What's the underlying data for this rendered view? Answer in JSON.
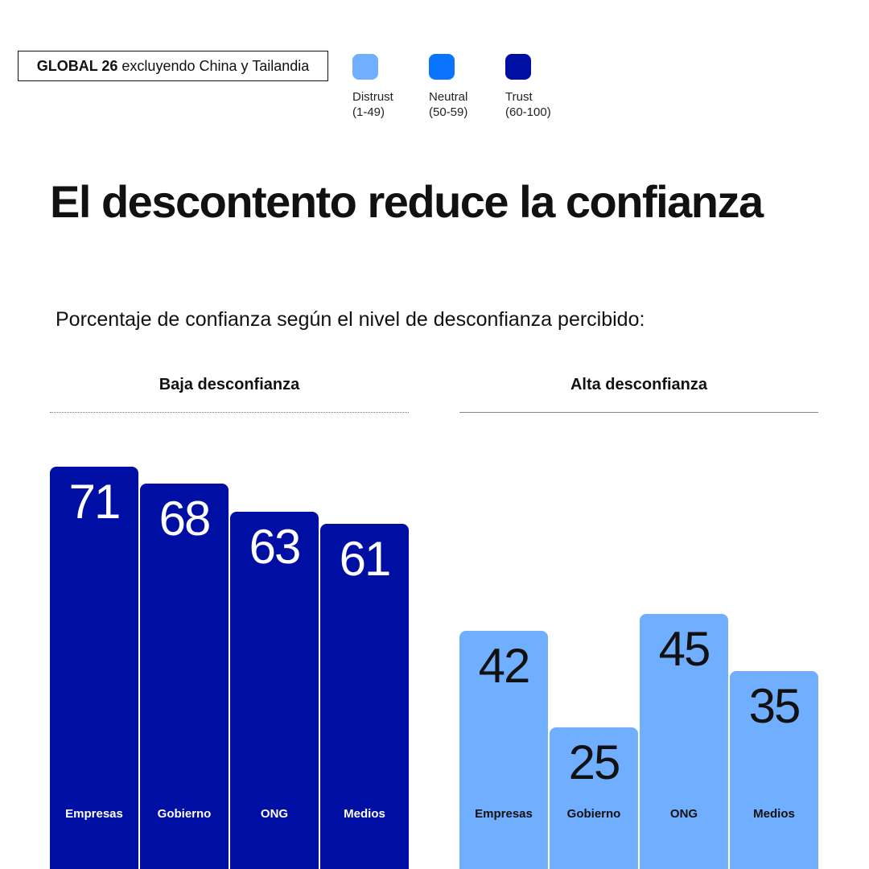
{
  "header": {
    "scope_bold": "GLOBAL 26",
    "scope_rest": "excluyendo China y Tailandia"
  },
  "legend": [
    {
      "name": "Distrust",
      "range": "(1-49)",
      "color": "#70aeff"
    },
    {
      "name": "Neutral",
      "range": "(50-59)",
      "color": "#0b74ff"
    },
    {
      "name": "Trust",
      "range": "(60-100)",
      "color": "#000fa3"
    }
  ],
  "chart_data": [
    {
      "type": "bar",
      "title": "El descontento reduce la confianza",
      "subtitle": "Porcentaje de confianza según el nivel de desconfianza percibido:",
      "panel": "Baja desconfianza",
      "categories": [
        "Empresas",
        "Gobierno",
        "ONG",
        "Medios"
      ],
      "values": [
        71,
        68,
        63,
        61
      ],
      "colors": [
        "#000fa3",
        "#000fa3",
        "#000fa3",
        "#000fa3"
      ],
      "value_text_color": "#ffffff",
      "legend": "top"
    },
    {
      "type": "bar",
      "panel": "Alta desconfianza",
      "categories": [
        "Empresas",
        "Gobierno",
        "ONG",
        "Medios"
      ],
      "values": [
        42,
        25,
        45,
        35
      ],
      "colors": [
        "#70aeff",
        "#70aeff",
        "#70aeff",
        "#70aeff"
      ],
      "value_text_color": "#111111"
    }
  ]
}
